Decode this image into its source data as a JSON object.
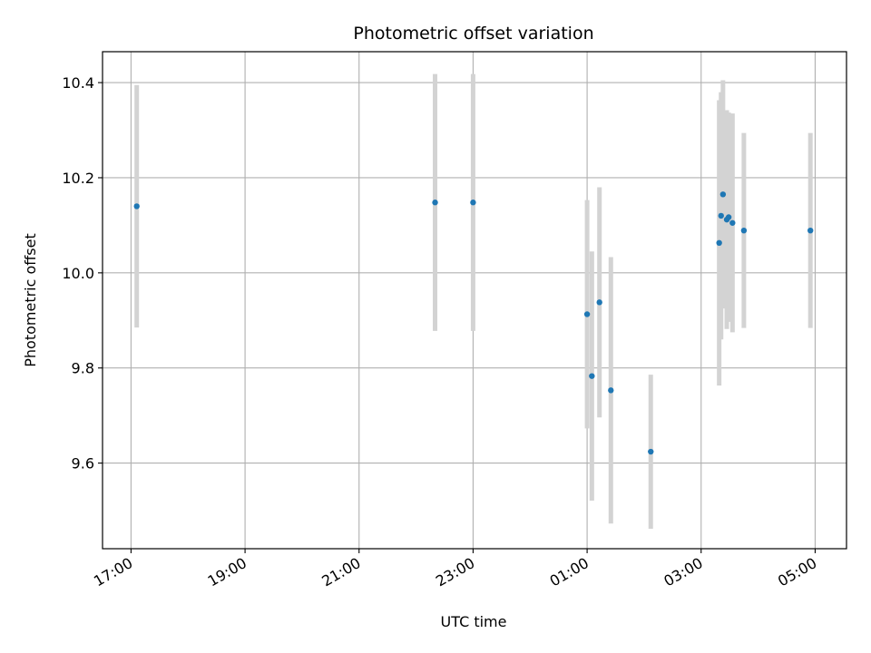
{
  "chart_data": {
    "type": "scatter",
    "title": "Photometric offset variation",
    "xlabel": "UTC time",
    "ylabel": "Photometric offset",
    "grid": true,
    "x_unit": "UTC time (HH:MM)",
    "xlim": [
      "16:30",
      "05:33"
    ],
    "ylim": [
      9.42,
      10.465
    ],
    "x_ticks": [
      "17:00",
      "19:00",
      "21:00",
      "23:00",
      "01:00",
      "03:00",
      "05:00"
    ],
    "y_ticks": [
      9.6,
      9.8,
      10.0,
      10.2,
      10.4
    ],
    "y_tick_labels": [
      "9.6",
      "9.8",
      "10.0",
      "10.2",
      "10.4"
    ],
    "marker_color": "#1f77b4",
    "errorbar_color": "#d3d3d3",
    "points": [
      {
        "x": "17:06",
        "y": 10.14,
        "err": 0.255
      },
      {
        "x": "22:20",
        "y": 10.148,
        "err": 0.27
      },
      {
        "x": "23:00",
        "y": 10.148,
        "err": 0.27
      },
      {
        "x": "01:00",
        "y": 9.913,
        "err": 0.24
      },
      {
        "x": "01:05",
        "y": 9.783,
        "err": 0.262
      },
      {
        "x": "01:13",
        "y": 9.938,
        "err": 0.242
      },
      {
        "x": "01:25",
        "y": 9.753,
        "err": 0.28
      },
      {
        "x": "02:07",
        "y": 9.624,
        "err": 0.162
      },
      {
        "x": "03:19",
        "y": 10.063,
        "err": 0.3
      },
      {
        "x": "03:21",
        "y": 10.12,
        "err": 0.26
      },
      {
        "x": "03:23",
        "y": 10.165,
        "err": 0.24
      },
      {
        "x": "03:27",
        "y": 10.112,
        "err": 0.23
      },
      {
        "x": "03:29",
        "y": 10.117,
        "err": 0.22
      },
      {
        "x": "03:33",
        "y": 10.105,
        "err": 0.23
      },
      {
        "x": "03:45",
        "y": 10.089,
        "err": 0.205
      },
      {
        "x": "04:55",
        "y": 10.089,
        "err": 0.205
      }
    ]
  }
}
